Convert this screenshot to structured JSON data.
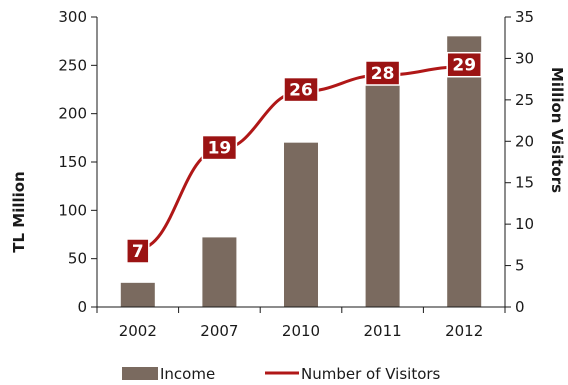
{
  "colors": {
    "income": "#7a6a5f",
    "visitors": "#b01717",
    "label_box": "#9b1313",
    "axis": "#1a1a1a"
  },
  "chart_data": {
    "type": "bar",
    "categories": [
      "2002",
      "2007",
      "2010",
      "2011",
      "2012"
    ],
    "series": [
      {
        "name": "Income",
        "type": "bar",
        "axis": "left",
        "values": [
          25,
          72,
          170,
          253,
          280
        ]
      },
      {
        "name": "Number of Visitors",
        "type": "line",
        "axis": "right",
        "values": [
          7,
          19,
          26,
          28,
          29
        ],
        "data_labels": [
          "7",
          "19",
          "26",
          "28",
          "29"
        ]
      }
    ],
    "ylabel": "TL Million",
    "ylabel_right": "Million Visitors",
    "ylim": [
      0,
      300
    ],
    "ylim_right": [
      0,
      35
    ],
    "yticks": [
      "0",
      "50",
      "100",
      "150",
      "200",
      "250",
      "300"
    ],
    "yticks_right": [
      "0",
      "5",
      "10",
      "15",
      "20",
      "25",
      "30",
      "35"
    ],
    "grid": false,
    "legend": {
      "position": "bottom",
      "entries": [
        "Income",
        "Number of Visitors"
      ]
    }
  }
}
